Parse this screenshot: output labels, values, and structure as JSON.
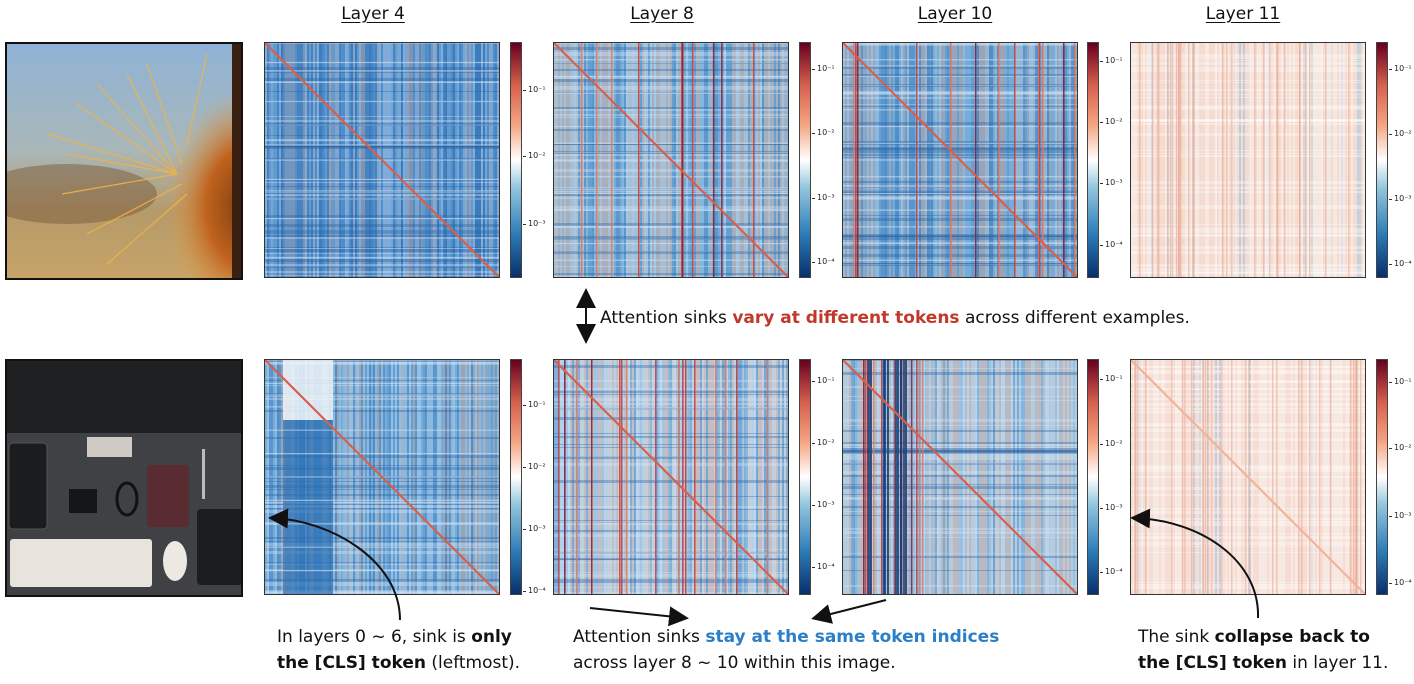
{
  "layers": [
    "Layer 4",
    "Layer 8",
    "Layer 10",
    "Layer 11"
  ],
  "colorbar_ticks": {
    "r1_l4": [
      "10⁻¹",
      "10⁻²",
      "10⁻³"
    ],
    "r1_l8": [
      "10⁻¹",
      "10⁻²",
      "10⁻³",
      "10⁻⁴"
    ],
    "r1_l10": [
      "10⁻¹",
      "10⁻²",
      "10⁻³",
      "10⁻⁴"
    ],
    "r1_l11": [
      "10⁻¹",
      "10⁻²",
      "10⁻³",
      "10⁻⁴"
    ],
    "r2_l4": [
      "10⁻¹",
      "10⁻²",
      "10⁻³",
      "10⁻⁴"
    ],
    "r2_l8": [
      "10⁻¹",
      "10⁻²",
      "10⁻³",
      "10⁻⁴"
    ],
    "r2_l10": [
      "10⁻¹",
      "10⁻²",
      "10⁻³",
      "10⁻⁴"
    ],
    "r2_l11": [
      "10⁻¹",
      "10⁻²",
      "10⁻³",
      "10⁻⁴"
    ]
  },
  "notes": {
    "middle": {
      "a": "Attention sinks ",
      "b": "vary at different tokens",
      "c": " across different examples."
    },
    "left": {
      "a": "In layers 0 ~ 6, sink is ",
      "b": "only",
      "c": "the [CLS] token",
      "d": " (leftmost)."
    },
    "center": {
      "a": "Attention sinks ",
      "b": "stay at the same token indices",
      "c": "across layer 8 ~ 10 within this image."
    },
    "right": {
      "a": "The sink ",
      "b": "collapse back to",
      "c": "the [CLS] token",
      "d": " in layer 11."
    }
  },
  "colors": {
    "red": "#c0392b",
    "blue": "#2a7fc9",
    "colormap": "RdBu_r"
  },
  "images": [
    "cactus-photo",
    "desk-photo"
  ]
}
